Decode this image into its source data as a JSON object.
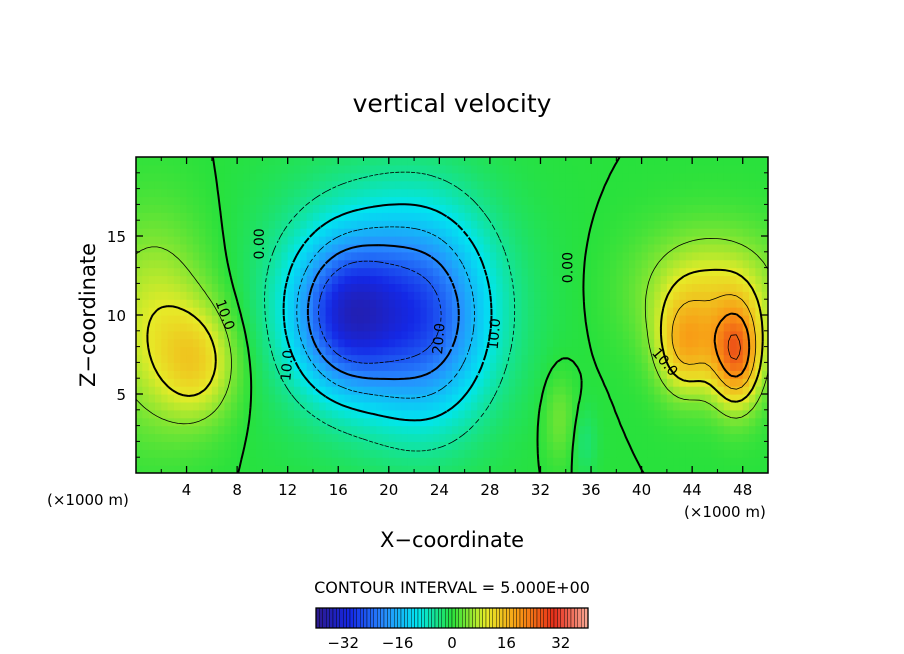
{
  "chart_data": {
    "type": "heatmap",
    "title": "vertical velocity",
    "xlabel": "X−coordinate",
    "ylabel": "Z−coordinate",
    "x_unit_left": "(×1000 m)",
    "x_unit_right": "(×1000 m)",
    "xlim": [
      0,
      50
    ],
    "ylim": [
      0,
      20
    ],
    "x_ticks": [
      4,
      8,
      12,
      16,
      20,
      24,
      28,
      32,
      36,
      40,
      44,
      48
    ],
    "y_ticks": [
      5,
      10,
      15
    ],
    "contour_interval_label": "CONTOUR INTERVAL = 5.000E+00",
    "contour_labels": [
      {
        "text": "0.00",
        "x": 9.8,
        "y": 14.5,
        "rotate": -90
      },
      {
        "text": "0.00",
        "x": 34.2,
        "y": 13.0,
        "rotate": -90
      },
      {
        "text": "10.0",
        "x": 7.0,
        "y": 10.0,
        "rotate": 70
      },
      {
        "text": "10.0",
        "x": 12.0,
        "y": 6.8,
        "rotate": -85
      },
      {
        "text": "20.0",
        "x": 24.0,
        "y": 8.5,
        "rotate": -85
      },
      {
        "text": "10.0",
        "x": 28.4,
        "y": 8.8,
        "rotate": -85
      },
      {
        "text": "10.0",
        "x": 41.8,
        "y": 7.0,
        "rotate": 50
      }
    ],
    "field_features": [
      {
        "type": "updraft",
        "x": 1.5,
        "y": 9.5,
        "amp": 9,
        "sx": 3.2,
        "sy": 4.5
      },
      {
        "type": "updraft",
        "x": 5,
        "y": 7,
        "amp": 10,
        "sx": 2.2,
        "sy": 2.5
      },
      {
        "type": "downdraft",
        "x": 16.5,
        "y": 10,
        "amp": -20,
        "sx": 2.8,
        "sy": 3.2
      },
      {
        "type": "downdraft",
        "x": 23,
        "y": 9.5,
        "amp": -16,
        "sx": 3.5,
        "sy": 4.5
      },
      {
        "type": "downdraft",
        "x": 19.5,
        "y": 11,
        "amp": -13,
        "sx": 6,
        "sy": 5
      },
      {
        "type": "updraft",
        "x": 47.5,
        "y": 7.5,
        "amp": 22,
        "sx": 1.4,
        "sy": 2.3
      },
      {
        "type": "updraft",
        "x": 43.5,
        "y": 8,
        "amp": 14,
        "sx": 1.6,
        "sy": 2.2
      },
      {
        "type": "updraft",
        "x": 45.5,
        "y": 11.5,
        "amp": 10,
        "sx": 4,
        "sy": 2.8
      },
      {
        "type": "updraft",
        "x": 33.5,
        "y": 3.5,
        "amp": 4,
        "sx": 0.9,
        "sy": 2
      },
      {
        "type": "downdraft",
        "x": 35.5,
        "y": 2,
        "amp": -3,
        "sx": 0.7,
        "sy": 1.5
      }
    ],
    "colorbar": {
      "range": [
        -40,
        40
      ],
      "tick_values": [
        -32,
        -16,
        0,
        16,
        32
      ],
      "tick_labels": [
        "−32",
        "−16",
        "0",
        "16",
        "32"
      ]
    },
    "grid": false,
    "legend": "colorbar-bottom"
  }
}
